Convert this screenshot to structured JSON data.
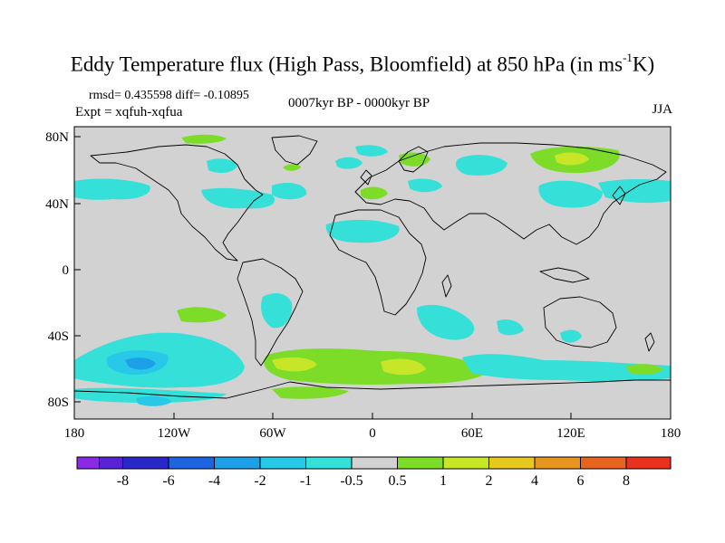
{
  "title": {
    "main": "Eddy Temperature flux (High Pass, Bloomfield) at 850 hPa (in ms",
    "sup": "-1",
    "end": "K)"
  },
  "stats": "rmsd= 0.435598 diff= -0.10895",
  "expt": "Expt = xqfuh-xqfua",
  "period": "0007kyr BP - 0000kyr BP",
  "season": "JJA",
  "map": {
    "ocean_color": "#d2d2d2",
    "coast_color": "#000000",
    "lon_labels": [
      "180",
      "120W",
      "60W",
      "0",
      "60E",
      "120E",
      "180"
    ],
    "lat_labels": [
      "80N",
      "40N",
      "0",
      "40S",
      "80S"
    ]
  },
  "colorbar": {
    "labels": [
      "-8",
      "-6",
      "-4",
      "-2",
      "-1",
      "-0.5",
      "0.5",
      "1",
      "2",
      "4",
      "6",
      "8"
    ],
    "colors": [
      "#8a2be2",
      "#2828c8",
      "#1e64e0",
      "#1ea0e8",
      "#28c8e8",
      "#34e0d8",
      "#d2d2d2",
      "#7ddc28",
      "#c8e628",
      "#e6c81e",
      "#e6961e",
      "#e6641e",
      "#e6321e"
    ]
  }
}
